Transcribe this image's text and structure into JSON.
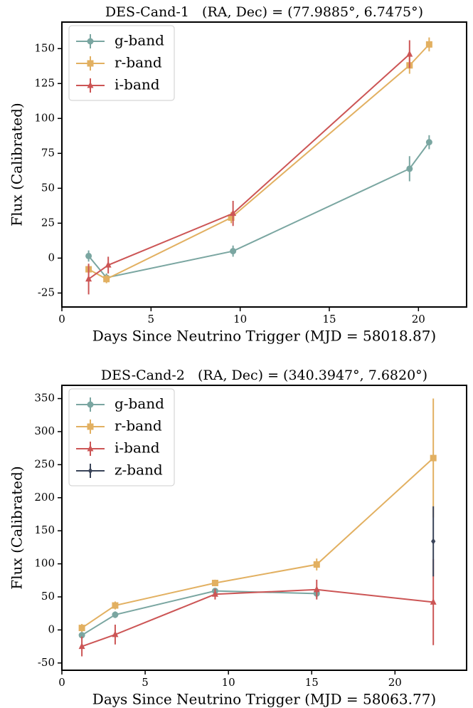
{
  "chart_data": [
    {
      "type": "line",
      "title": "DES-Cand-1   (RA, Dec) = (77.9885°, 6.7475°)",
      "x_label": "Days Since Neutrino Trigger (MJD = 58018.87)",
      "y_label": "Flux (Calibrated)",
      "xlim": [
        0,
        22.7
      ],
      "ylim": [
        -35,
        169
      ],
      "xticks": [
        0,
        5,
        10,
        15,
        20
      ],
      "yticks": [
        -25,
        0,
        25,
        50,
        75,
        100,
        125,
        150
      ],
      "legend": "upper left",
      "series": [
        {
          "name": "g-band",
          "color": "#7aa6a1",
          "marker": "circle",
          "x": [
            1.5,
            2.5,
            9.6,
            19.5,
            20.6
          ],
          "values": [
            1.5,
            -14,
            5,
            64,
            83
          ],
          "errors": [
            4,
            3,
            4,
            9,
            5
          ]
        },
        {
          "name": "r-band",
          "color": "#e2b061",
          "marker": "square",
          "x": [
            1.5,
            2.5,
            9.5,
            19.5,
            20.6
          ],
          "values": [
            -8,
            -15,
            29,
            138,
            153
          ],
          "errors": [
            3,
            3,
            4,
            6,
            5
          ]
        },
        {
          "name": "i-band",
          "color": "#cc5555",
          "marker": "triangle",
          "x": [
            1.5,
            2.6,
            9.6,
            19.5
          ],
          "values": [
            -15,
            -5,
            32,
            146
          ],
          "errors": [
            11,
            6,
            9,
            10
          ]
        }
      ]
    },
    {
      "type": "line",
      "title": "DES-Cand-2   (RA, Dec) = (340.3947°, 7.6820°)",
      "x_label": "Days Since Neutrino Trigger (MJD = 58063.77)",
      "y_label": "Flux (Calibrated)",
      "xlim": [
        0,
        24.3
      ],
      "ylim": [
        -61,
        370
      ],
      "xticks": [
        0,
        5,
        10,
        15,
        20
      ],
      "yticks": [
        -50,
        0,
        50,
        100,
        150,
        200,
        250,
        300,
        350
      ],
      "legend": "upper left",
      "series": [
        {
          "name": "g-band",
          "color": "#7aa6a1",
          "marker": "circle",
          "x": [
            1.2,
            3.2,
            9.2,
            15.3
          ],
          "values": [
            -8,
            23,
            59,
            55
          ],
          "errors": [
            5,
            5,
            4,
            7
          ]
        },
        {
          "name": "r-band",
          "color": "#e2b061",
          "marker": "square",
          "x": [
            1.2,
            3.2,
            9.2,
            15.3,
            22.3
          ],
          "values": [
            3,
            37,
            71,
            99,
            260
          ],
          "errors": [
            6,
            6,
            5,
            9,
            90
          ]
        },
        {
          "name": "i-band",
          "color": "#cc5555",
          "marker": "triangle",
          "x": [
            1.2,
            3.2,
            9.2,
            15.3,
            22.3
          ],
          "values": [
            -25,
            -7,
            54,
            61,
            42
          ],
          "errors": [
            15,
            15,
            8,
            15,
            65
          ]
        },
        {
          "name": "z-band",
          "color": "#3a4459",
          "marker": "diamond",
          "x": [
            22.3
          ],
          "values": [
            134
          ],
          "errors": [
            53
          ]
        }
      ]
    }
  ]
}
